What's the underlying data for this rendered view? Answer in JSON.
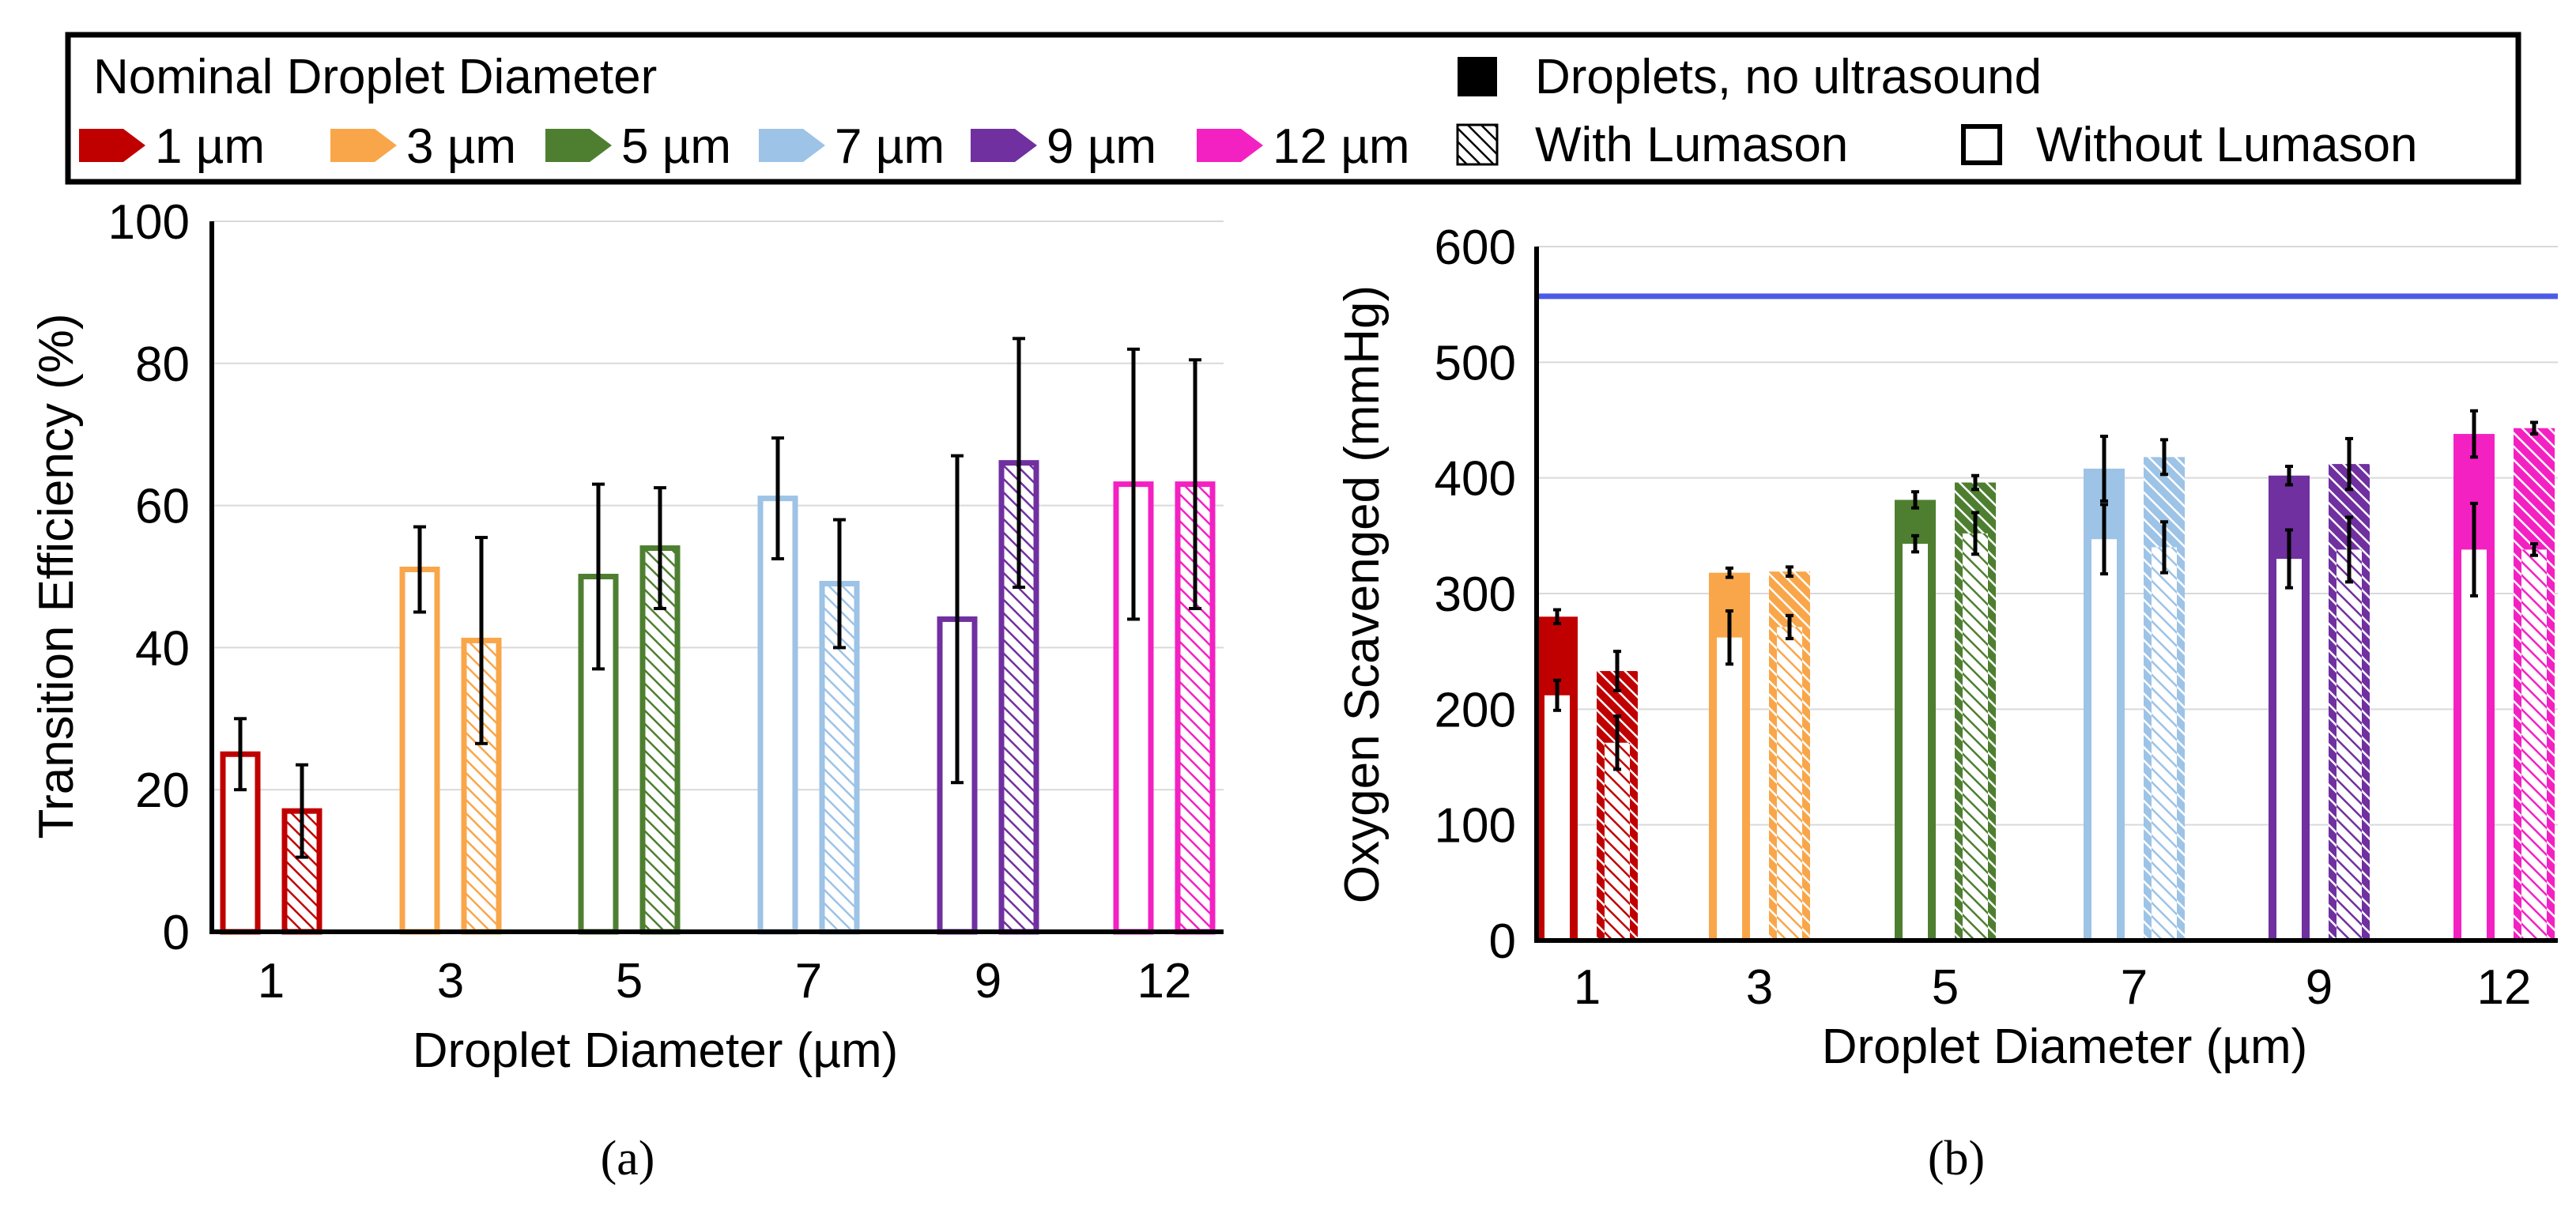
{
  "colors": {
    "d1": "#C00000",
    "d3": "#F9A64A",
    "d5": "#4E7F31",
    "d7": "#9DC3E6",
    "d9": "#7030A0",
    "d12": "#F321C2",
    "ref_line": "#4B5BE6"
  },
  "legend": {
    "title": "Nominal Droplet Diameter",
    "sizes": [
      {
        "label": "1 µm",
        "color": "#C00000"
      },
      {
        "label": "3 µm",
        "color": "#F9A64A"
      },
      {
        "label": "5 µm",
        "color": "#4E7F31"
      },
      {
        "label": "7 µm",
        "color": "#9DC3E6"
      },
      {
        "label": "9 µm",
        "color": "#7030A0"
      },
      {
        "label": "12 µm",
        "color": "#F321C2"
      }
    ],
    "solid_label": "Droplets, no ultrasound",
    "hatched_label": "With Lumason",
    "open_label": "Without Lumason"
  },
  "chart_data": [
    {
      "type": "bar",
      "panel": "(a)",
      "xlabel": "Droplet Diameter (µm)",
      "ylabel": "Transition Efficiency (%)",
      "ylim": [
        0,
        100
      ],
      "yticks": [
        "0",
        "20",
        "40",
        "60",
        "80",
        "100"
      ],
      "grid": true,
      "categories": [
        "1",
        "3",
        "5",
        "7",
        "9",
        "12"
      ],
      "series": [
        {
          "name": "Without Lumason",
          "style": "open",
          "values": [
            25,
            51,
            50,
            61,
            44,
            63
          ],
          "err": [
            5,
            6,
            13,
            8.5,
            23,
            19
          ]
        },
        {
          "name": "With Lumason",
          "style": "hatched",
          "values": [
            17,
            41,
            54,
            49,
            66,
            63
          ],
          "err": [
            6.5,
            14.5,
            8.5,
            9,
            17.5,
            17.5
          ]
        }
      ]
    },
    {
      "type": "bar",
      "panel": "(b)",
      "xlabel": "Droplet Diameter (µm)",
      "ylabel": "Oxygen Scavenged (mmHg)",
      "ylim": [
        0,
        600
      ],
      "yticks": [
        "0",
        "100",
        "200",
        "300",
        "400",
        "500",
        "600"
      ],
      "grid": true,
      "reference_line": 557,
      "categories": [
        "1",
        "3",
        "5",
        "7",
        "9",
        "12"
      ],
      "series": [
        {
          "name": "Without Lumason: Droplets, no ultrasound",
          "style": "solid",
          "values": [
            280,
            318,
            381,
            408,
            402,
            438
          ],
          "err": [
            6,
            4,
            7,
            28,
            8,
            20
          ]
        },
        {
          "name": "Without Lumason: with ultrasound",
          "style": "open",
          "values": [
            212,
            262,
            343,
            347,
            330,
            338
          ],
          "err": [
            13,
            23,
            7,
            30,
            25,
            40
          ]
        },
        {
          "name": "With Lumason: Droplets, no ultrasound",
          "style": "solid-hatch",
          "values": [
            233,
            319,
            396,
            418,
            412,
            443
          ],
          "err": [
            17,
            4,
            6,
            15,
            22,
            5
          ]
        },
        {
          "name": "With Lumason: with ultrasound",
          "style": "hatched",
          "values": [
            171,
            271,
            352,
            340,
            338,
            338
          ],
          "err": [
            23,
            10,
            18,
            22,
            28,
            5
          ]
        }
      ]
    }
  ]
}
